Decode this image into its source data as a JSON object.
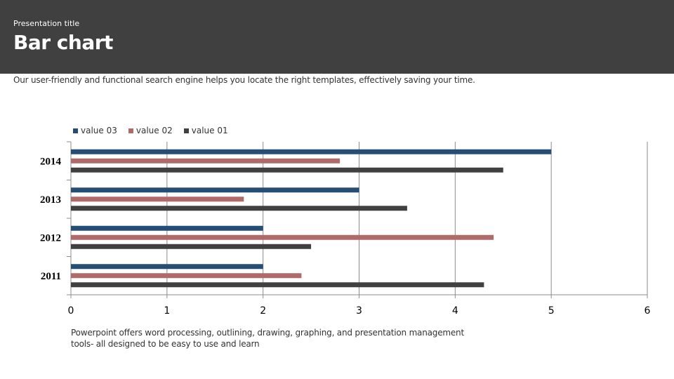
{
  "header": {
    "kicker": "Presentation title",
    "title": "Bar chart"
  },
  "subtitle": "Our user-friendly and functional search engine helps you locate the right templates, effectively saving your time.",
  "footer": {
    "line1": "Powerpoint offers word processing, outlining, drawing, graphing, and presentation management",
    "line2": "tools- all designed to be easy to use and learn"
  },
  "chart_data": {
    "type": "bar",
    "orientation": "horizontal",
    "title": "",
    "xlabel": "",
    "ylabel": "",
    "categories": [
      "2011",
      "2012",
      "2013",
      "2014"
    ],
    "series": [
      {
        "name": "value 01",
        "color": "#404040",
        "values": [
          4.3,
          2.5,
          3.5,
          4.5
        ]
      },
      {
        "name": "value 02",
        "color": "#b06a6a",
        "values": [
          2.4,
          4.4,
          1.8,
          2.8
        ]
      },
      {
        "name": "value 03",
        "color": "#264d73",
        "values": [
          2.0,
          2.0,
          3.0,
          5.0
        ]
      }
    ],
    "xlim": [
      0,
      6
    ],
    "xticks": [
      "0",
      "1",
      "2",
      "3",
      "4",
      "5",
      "6"
    ],
    "grid": "vertical",
    "legend_position": "top-left",
    "legend_order": [
      "value 03",
      "value 02",
      "value 01"
    ]
  }
}
